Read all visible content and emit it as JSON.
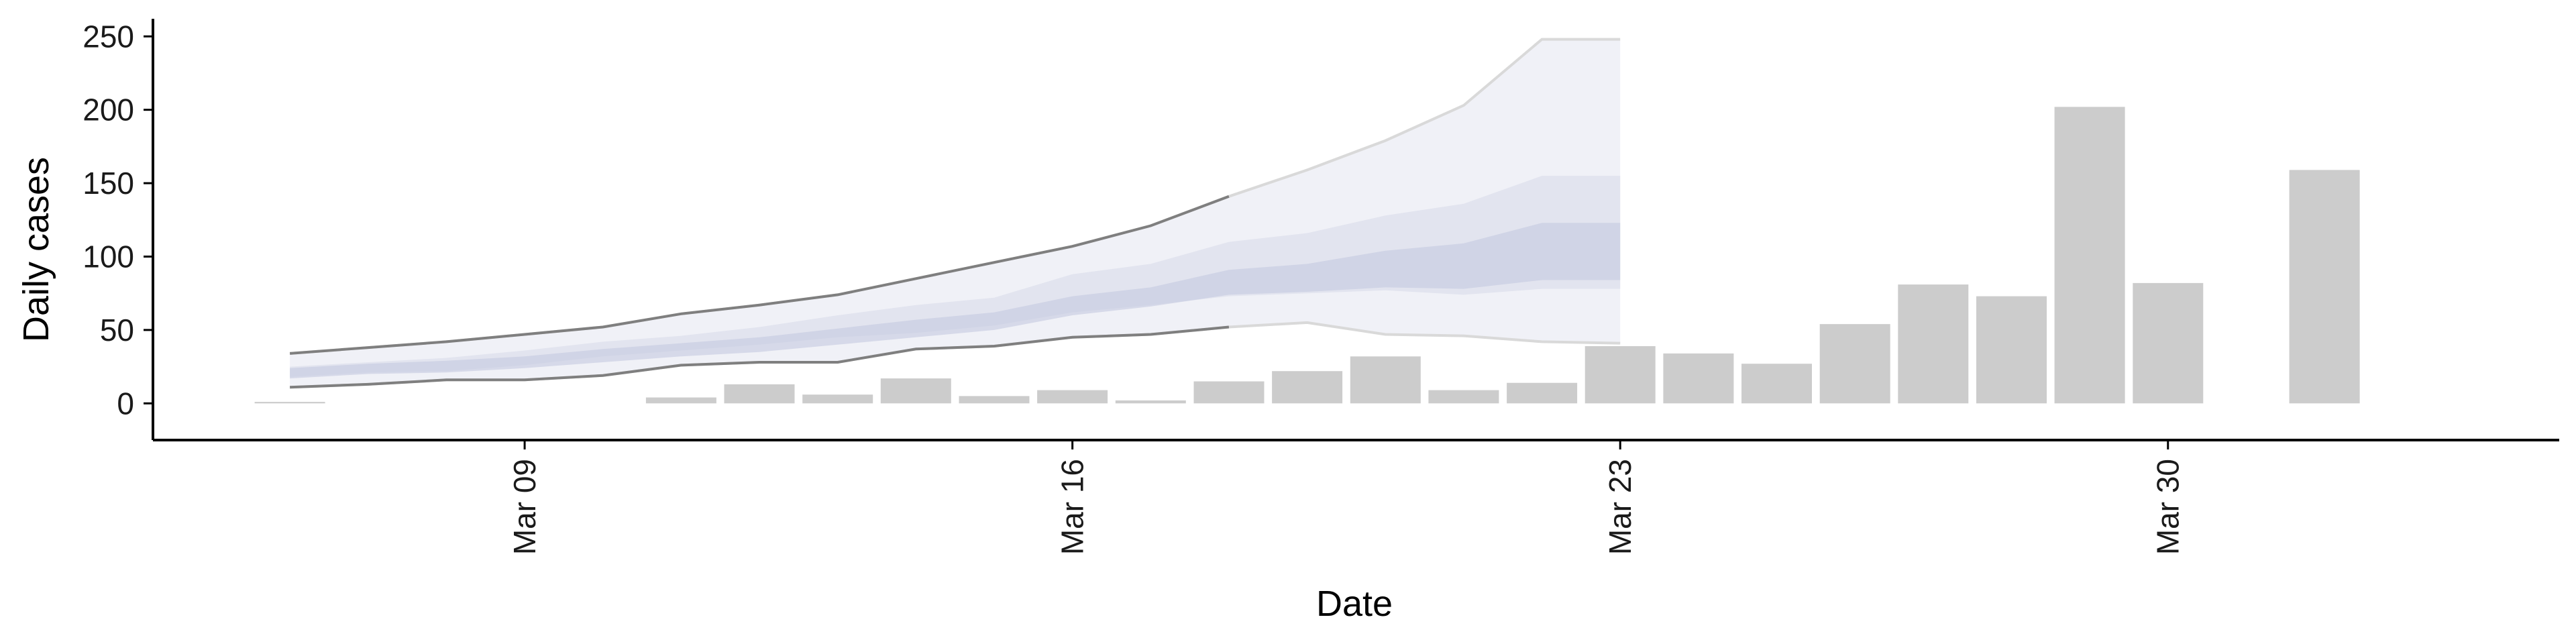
{
  "chart_data": {
    "type": "bar",
    "title": "",
    "xlabel": "Date",
    "ylabel": "Daily cases",
    "ylim": [
      -25,
      262
    ],
    "xlim": [
      "2020-03-04T06:00",
      "2020-04-04"
    ],
    "yticks": [
      0,
      50,
      100,
      150,
      200,
      250
    ],
    "xticks": [
      {
        "date": "2020-03-09",
        "label": "Mar 09"
      },
      {
        "date": "2020-03-16",
        "label": "Mar 16"
      },
      {
        "date": "2020-03-23",
        "label": "Mar 23"
      },
      {
        "date": "2020-03-30",
        "label": "Mar 30"
      }
    ],
    "grid": false,
    "legend": "none",
    "colors": {
      "bars": "#cccccc",
      "axis": "#000000",
      "band_outer": "#e4e6f0",
      "band_mid": "#d9dcea",
      "band_inner": "#c5c9df",
      "band_outline_dark": "#7f7f7f",
      "band_outline_light": "#d9d9d9"
    },
    "observed": [
      {
        "date": "2020-03-06",
        "cases": 1
      },
      {
        "date": "2020-03-07",
        "cases": 0
      },
      {
        "date": "2020-03-08",
        "cases": 0
      },
      {
        "date": "2020-03-09",
        "cases": 0
      },
      {
        "date": "2020-03-10",
        "cases": 0
      },
      {
        "date": "2020-03-11",
        "cases": 4
      },
      {
        "date": "2020-03-12",
        "cases": 13
      },
      {
        "date": "2020-03-13",
        "cases": 6
      },
      {
        "date": "2020-03-14",
        "cases": 17
      },
      {
        "date": "2020-03-15",
        "cases": 5
      },
      {
        "date": "2020-03-16",
        "cases": 9
      },
      {
        "date": "2020-03-17",
        "cases": 2
      },
      {
        "date": "2020-03-18",
        "cases": 15
      },
      {
        "date": "2020-03-19",
        "cases": 22
      },
      {
        "date": "2020-03-20",
        "cases": 32
      },
      {
        "date": "2020-03-21",
        "cases": 9
      },
      {
        "date": "2020-03-22",
        "cases": 14
      },
      {
        "date": "2020-03-23",
        "cases": 39
      },
      {
        "date": "2020-03-24",
        "cases": 34
      },
      {
        "date": "2020-03-25",
        "cases": 27
      },
      {
        "date": "2020-03-26",
        "cases": 54
      },
      {
        "date": "2020-03-27",
        "cases": 81
      },
      {
        "date": "2020-03-28",
        "cases": 73
      },
      {
        "date": "2020-03-29",
        "cases": 202
      },
      {
        "date": "2020-03-30",
        "cases": 82
      },
      {
        "date": "2020-03-31",
        "cases": 0
      },
      {
        "date": "2020-04-01",
        "cases": 159
      }
    ],
    "estimate": {
      "dates": [
        "2020-03-06",
        "2020-03-07",
        "2020-03-08",
        "2020-03-09",
        "2020-03-10",
        "2020-03-11",
        "2020-03-12",
        "2020-03-13",
        "2020-03-14",
        "2020-03-15",
        "2020-03-16",
        "2020-03-17",
        "2020-03-18",
        "2020-03-19",
        "2020-03-20",
        "2020-03-21",
        "2020-03-22",
        "2020-03-23"
      ],
      "outer_lower": [
        11,
        13,
        16,
        16,
        19,
        26,
        28,
        28,
        37,
        39,
        45,
        47,
        52,
        55,
        47,
        46,
        42,
        41
      ],
      "outer_upper": [
        34,
        38,
        42,
        47,
        52,
        61,
        67,
        74,
        85,
        96,
        107,
        121,
        141,
        159,
        179,
        203,
        248,
        248
      ],
      "mid_lower": [
        18,
        21,
        22,
        26,
        32,
        36,
        40,
        45,
        48,
        53,
        62,
        67,
        73,
        75,
        77,
        74,
        78,
        78
      ],
      "mid_upper": [
        25,
        28,
        31,
        36,
        42,
        46,
        52,
        60,
        67,
        72,
        88,
        95,
        110,
        116,
        128,
        136,
        155,
        155
      ],
      "inner_lower": [
        17,
        20,
        21,
        24,
        28,
        32,
        35,
        40,
        45,
        50,
        60,
        66,
        74,
        76,
        79,
        78,
        84,
        84
      ],
      "inner_upper": [
        24,
        27,
        29,
        32,
        37,
        41,
        45,
        51,
        57,
        62,
        73,
        79,
        91,
        95,
        104,
        109,
        123,
        123
      ]
    }
  }
}
